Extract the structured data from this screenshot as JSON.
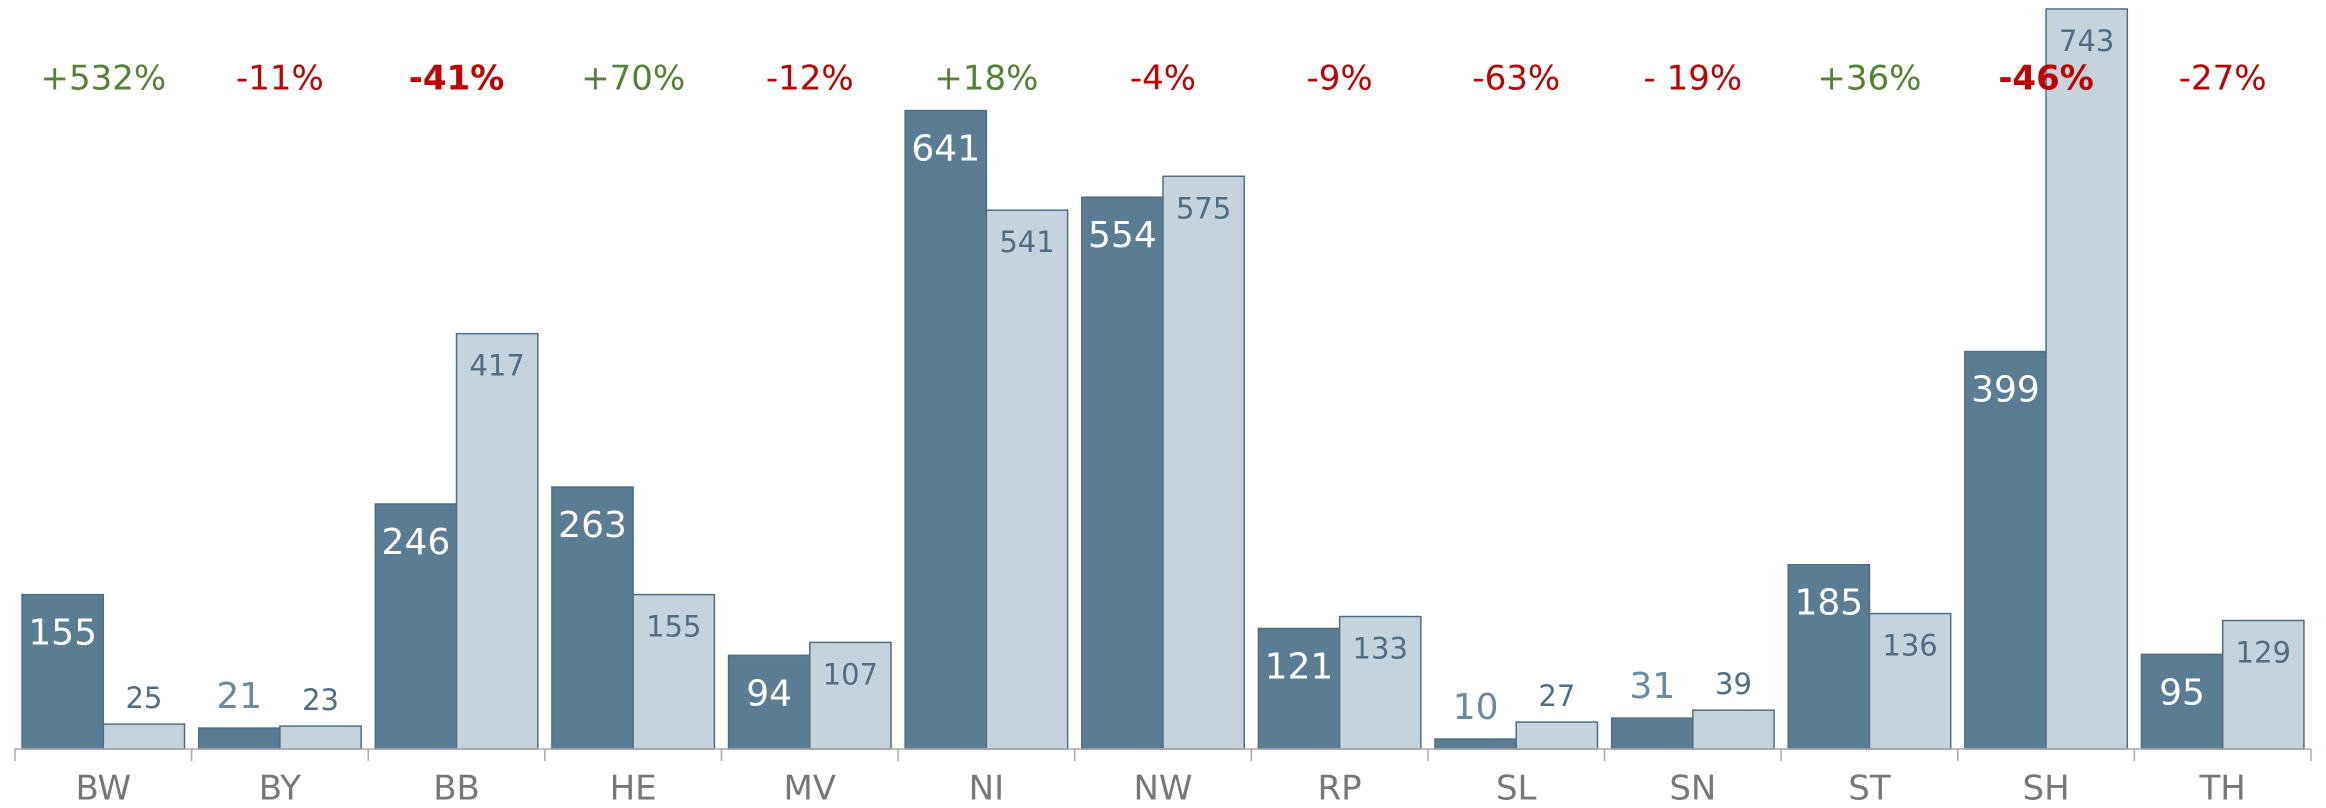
{
  "chart_data": {
    "type": "bar",
    "categories": [
      "BW",
      "BY",
      "BB",
      "HE",
      "MV",
      "NI",
      "NW",
      "RP",
      "SL",
      "SN",
      "ST",
      "SH",
      "TH"
    ],
    "series": [
      {
        "color": "#5a7d93",
        "values": [
          155,
          21,
          246,
          263,
          94,
          641,
          554,
          121,
          10,
          31,
          185,
          399,
          95
        ]
      },
      {
        "color": "#c5d4dc",
        "values": [
          25,
          23,
          417,
          155,
          107,
          541,
          575,
          133,
          27,
          39,
          136,
          743,
          129
        ]
      }
    ],
    "annotations": [
      {
        "text": "+532%",
        "color": "#548235",
        "bold": false
      },
      {
        "text": "-11%",
        "color": "#c00000",
        "bold": false
      },
      {
        "text": "-41%",
        "color": "#c00000",
        "bold": true
      },
      {
        "text": "+70%",
        "color": "#548235",
        "bold": false
      },
      {
        "text": "-12%",
        "color": "#c00000",
        "bold": false
      },
      {
        "text": "+18%",
        "color": "#548235",
        "bold": false
      },
      {
        "text": "-4%",
        "color": "#c00000",
        "bold": false
      },
      {
        "text": "-9%",
        "color": "#c00000",
        "bold": false
      },
      {
        "text": "-63%",
        "color": "#c00000",
        "bold": false
      },
      {
        "text": "- 19%",
        "color": "#c00000",
        "bold": false
      },
      {
        "text": "+36%",
        "color": "#548235",
        "bold": false
      },
      {
        "text": "-46%",
        "color": "#c00000",
        "bold": true
      },
      {
        "text": "-27%",
        "color": "#c00000",
        "bold": false
      }
    ],
    "ylim": [
      0,
      750
    ]
  }
}
